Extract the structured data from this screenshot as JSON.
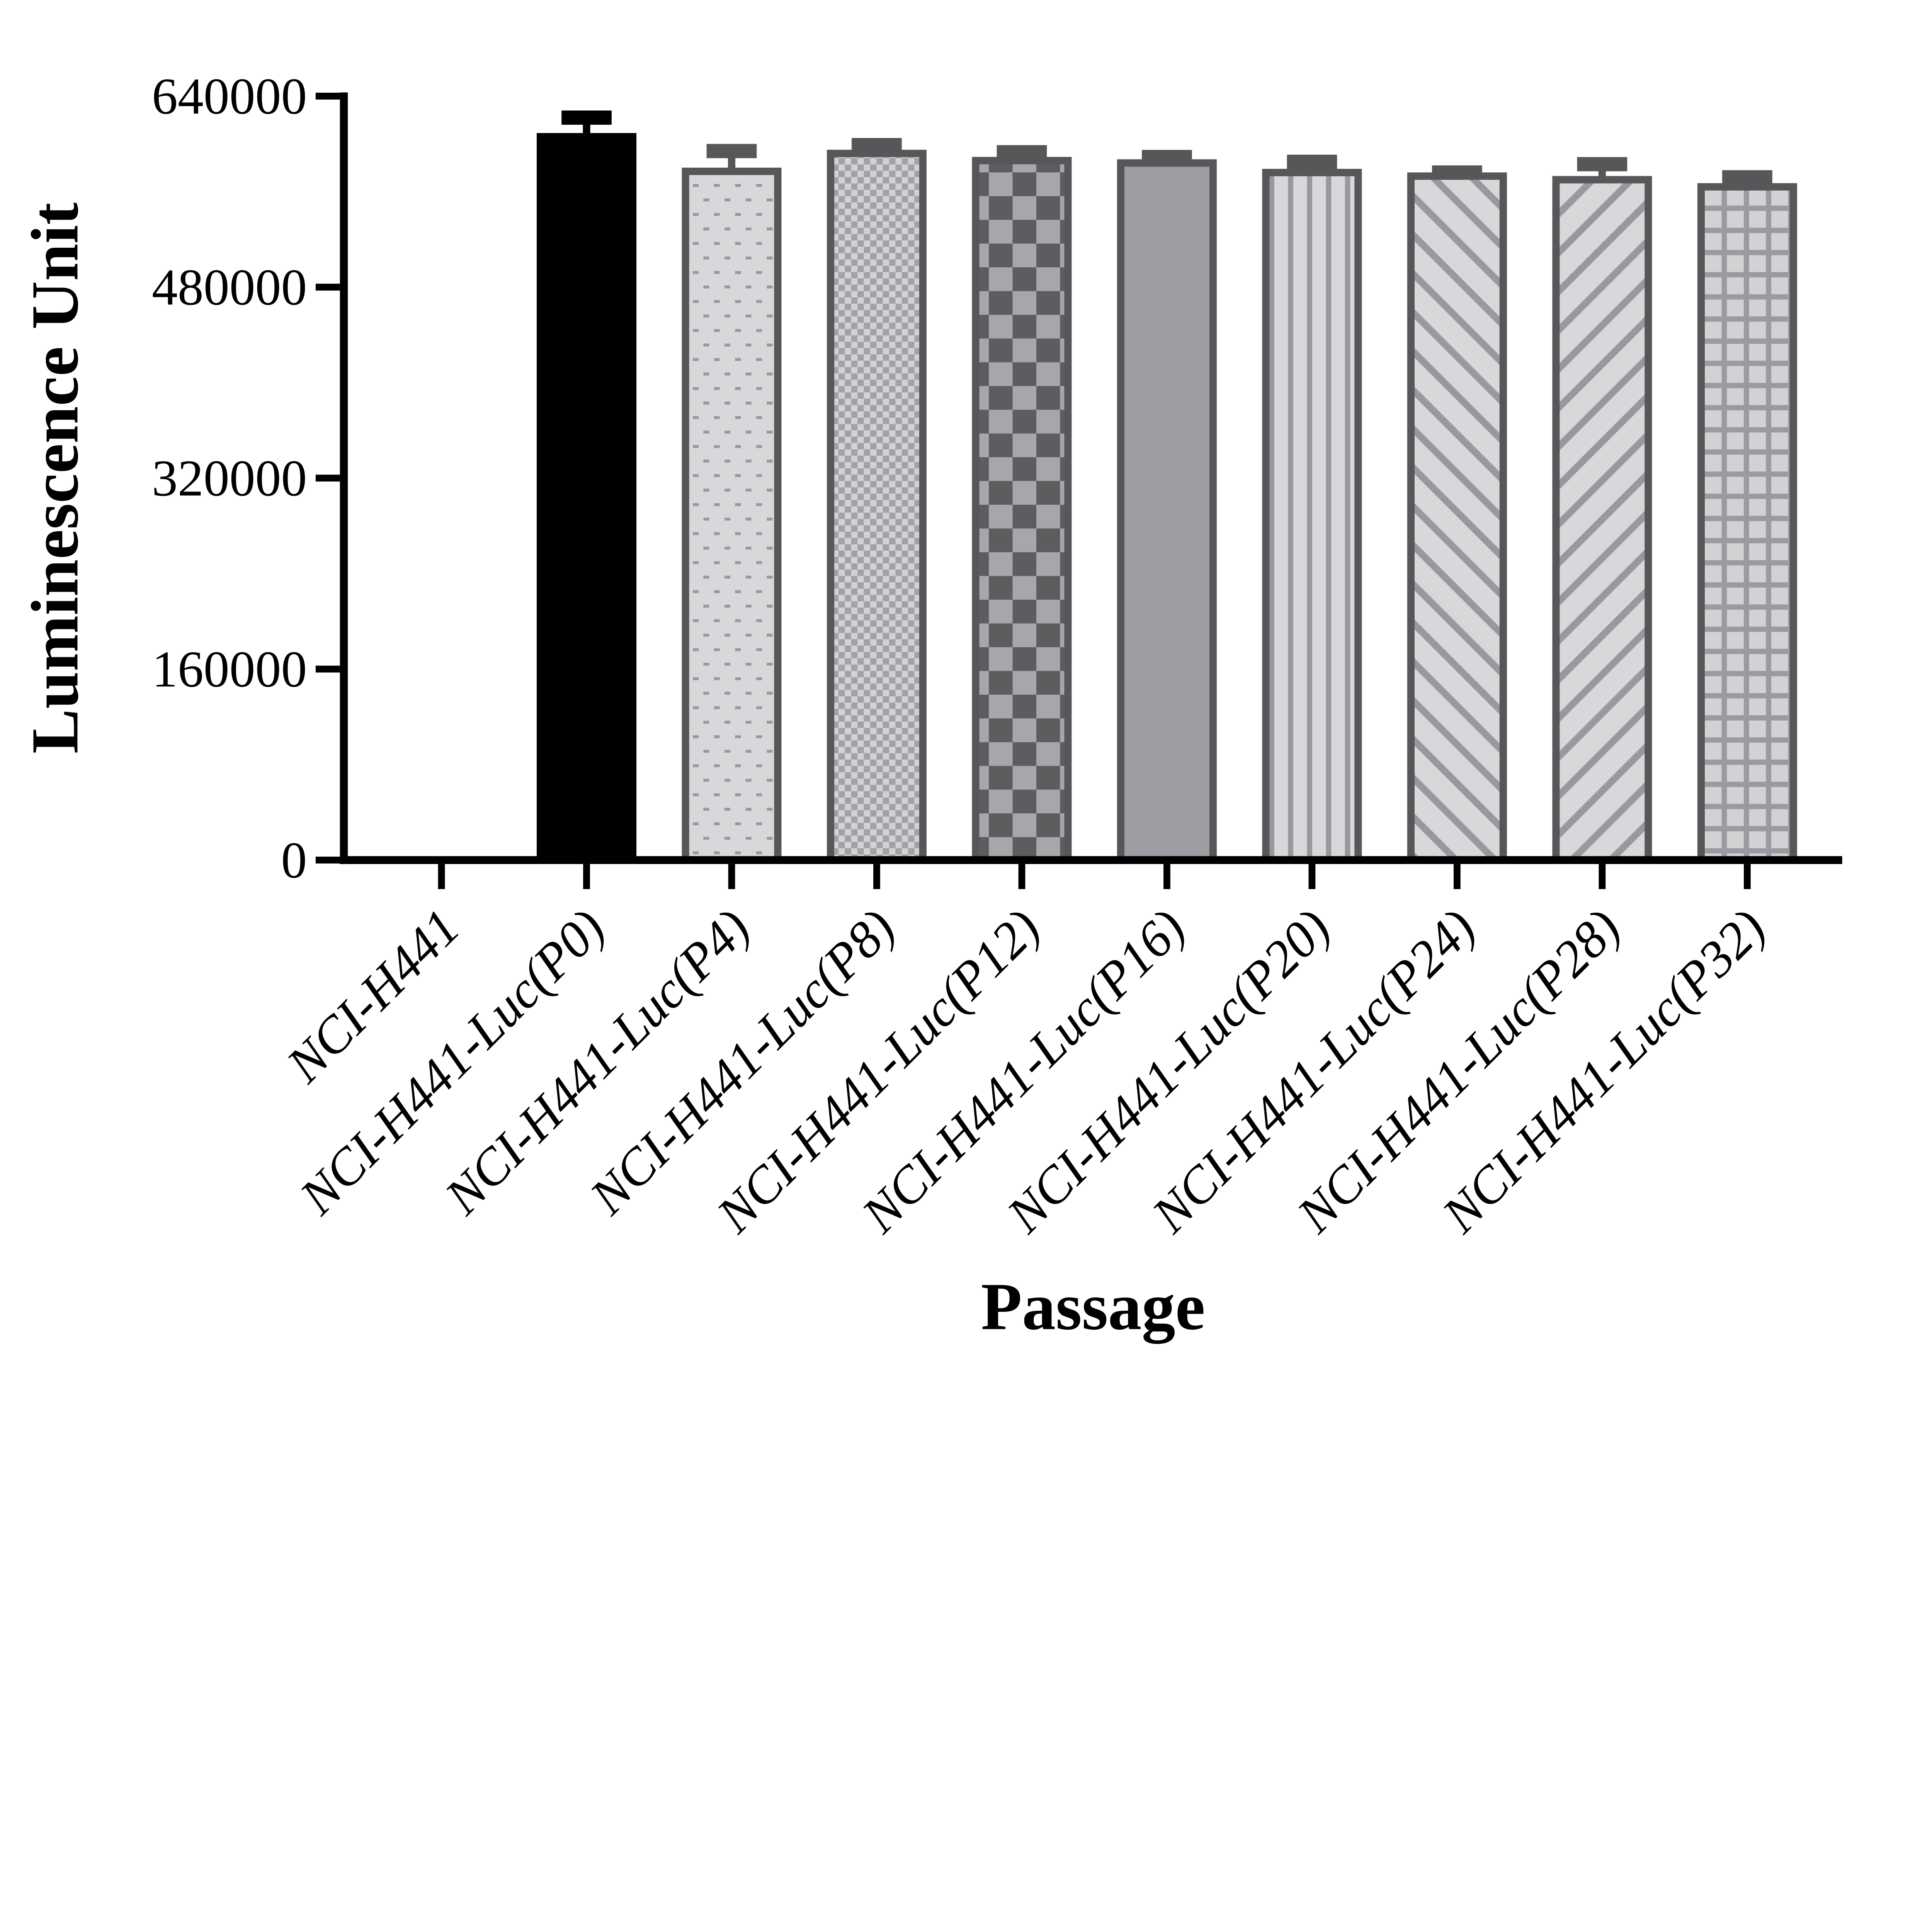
{
  "chart_data": {
    "type": "bar",
    "title": "",
    "xlabel": "Passage",
    "ylabel": "Luminescence Unit",
    "categories": [
      "NCI-H441",
      "NCI-H441-Luc(P0)",
      "NCI-H441-Luc(P4)",
      "NCI-H441-Luc(P8)",
      "NCI-H441-Luc(P12)",
      "NCI-H441-Luc(P16)",
      "NCI-H441-Luc(P20)",
      "NCI-H441-Luc(P24)",
      "NCI-H441-Luc(P28)",
      "NCI-H441-Luc(P32)"
    ],
    "values": [
      0,
      606000,
      577000,
      592000,
      586000,
      584000,
      576000,
      573000,
      570000,
      564000
    ],
    "errors": [
      0,
      16000,
      17000,
      7000,
      7000,
      5000,
      9000,
      3000,
      13000,
      8000
    ],
    "error_direction": "plus-only",
    "bar_patterns": [
      "none",
      "solid-black",
      "dots",
      "checker-fine",
      "checker-coarse",
      "solid-gray",
      "vertical-stripes",
      "diagonal-up",
      "diagonal-down",
      "grid"
    ],
    "ylim": [
      0,
      640000
    ],
    "yticks": [
      0,
      160000,
      320000,
      480000,
      640000
    ],
    "ytick_labels": [
      "0",
      "160000",
      "320000",
      "480000",
      "640000"
    ],
    "xtick_label_style": "italic, rotated 45 degrees, right-anchored",
    "grid": false,
    "legend_position": "none",
    "colors": {
      "axis": "#000000",
      "black_bar": "#000000",
      "bar_border": "#57575a",
      "pattern_light": "#d8d8da",
      "pattern_mid": "#98989e",
      "checker_light": "#d2d2d4",
      "checker_mid": "#a1a1a7",
      "coarse_dark": "#5d5d5f",
      "coarse_mid": "#a7a7ab",
      "solid_gray": "#9d9ea3",
      "grid_line": "#9a9aa0"
    }
  }
}
